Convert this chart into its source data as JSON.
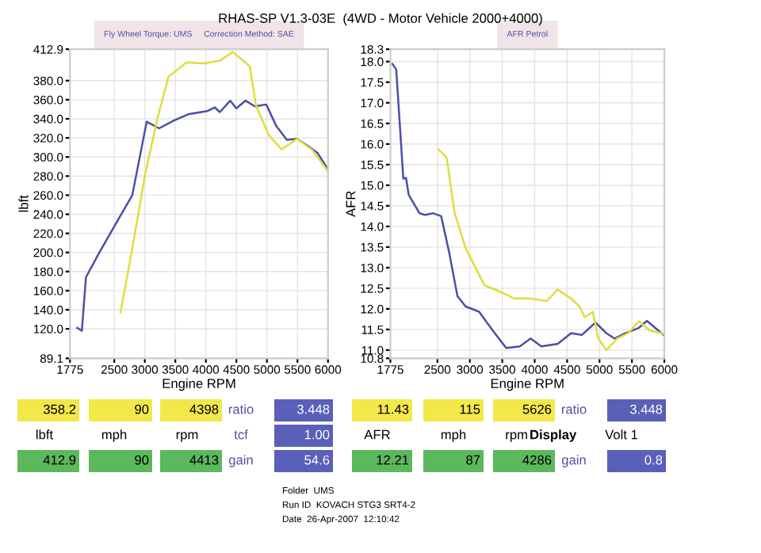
{
  "chart_data": [
    {
      "type": "line",
      "title": "RHAS-SP V1.3-03E  (4WD - Motor Vehicle 2000+4000)",
      "subtitle": "Fly Wheel Torque: UMS     Correction Method: SAE",
      "xlabel": "Engine RPM",
      "ylabel": "lbft",
      "xlim": [
        1775,
        6000
      ],
      "xticks": [
        1775,
        2500,
        3000,
        3500,
        4000,
        4500,
        5000,
        5500,
        6000
      ],
      "ylim": [
        89.1,
        412.9
      ],
      "yticks": [
        89.1,
        {
          "value": 120,
          "label": "120.0"
        },
        {
          "value": 140,
          "label": "140.0"
        },
        {
          "value": 160,
          "label": "160.0"
        },
        {
          "value": 180,
          "label": "180.0"
        },
        {
          "value": 200,
          "label": "200.0"
        },
        {
          "value": 220,
          "label": "220.0"
        },
        {
          "value": 240,
          "label": "240.0"
        },
        {
          "value": 260,
          "label": "260.0"
        },
        {
          "value": 280,
          "label": "280.0"
        },
        {
          "value": 300,
          "label": "300.0"
        },
        {
          "value": 320,
          "label": "320.0"
        },
        {
          "value": 340,
          "label": "340.0"
        },
        {
          "value": 360,
          "label": "360.0"
        },
        {
          "value": 380,
          "label": "380.0"
        },
        412.9
      ],
      "grid": true,
      "series": [
        {
          "color": "#4b4fa8",
          "x": [
            1893,
            1969,
            2036,
            2247,
            2542,
            2795,
            3031,
            3234,
            3470,
            3723,
            4018,
            4145,
            4229,
            4398,
            4499,
            4651,
            4803,
            4988,
            5157,
            5326,
            5495,
            5663,
            5832,
            6000
          ],
          "values": [
            121,
            118,
            174,
            199,
            232,
            260,
            337,
            330,
            338,
            345,
            348,
            352,
            347,
            359,
            351,
            359,
            353,
            355,
            332,
            318,
            319,
            312,
            304,
            287
          ]
        },
        {
          "color": "#dede3c",
          "x": [
            2601,
            2795,
            3006,
            3217,
            3386,
            3681,
            3976,
            4229,
            4440,
            4719,
            4820,
            5030,
            5241,
            5495,
            5748,
            6000
          ],
          "values": [
            137,
            204,
            282,
            343,
            384,
            399,
            398,
            401,
            410,
            395,
            354,
            323,
            308,
            319,
            307,
            285
          ]
        }
      ],
      "annotations": [
        "358.2",
        "90",
        "4398",
        "ratio",
        "3.448",
        "11.43",
        "115",
        "5626",
        "ratio",
        "3.448",
        "lbft",
        "mph",
        "rpm",
        "tcf",
        "1.00",
        "AFR",
        "mph",
        "rpm",
        "Display",
        "Volt 1",
        "412.9",
        "90",
        "4413",
        "gain",
        "54.6",
        "12.21",
        "87",
        "4286",
        "gain",
        "0.8",
        "Folder  UMS",
        "Run ID  KOVACH STG3 SRT4-2",
        "Date  26-Apr-2007  12:10:42"
      ]
    },
    {
      "type": "line",
      "subtitle": "AFR Petrol",
      "xlabel": "Engine RPM",
      "ylabel": "AFR",
      "xlim": [
        1775,
        6000
      ],
      "xticks": [
        1775,
        2500,
        3000,
        3500,
        4000,
        4500,
        5000,
        5500,
        6000
      ],
      "ylim": [
        10.8,
        18.3
      ],
      "yticks": [
        10.8,
        {
          "value": 11,
          "label": "11.0"
        },
        11.5,
        {
          "value": 12,
          "label": "12.0"
        },
        12.5,
        {
          "value": 13,
          "label": "13.0"
        },
        13.5,
        {
          "value": 14,
          "label": "14.0"
        },
        14.5,
        {
          "value": 15,
          "label": "15.0"
        },
        15.5,
        {
          "value": 16,
          "label": "16.0"
        },
        16.5,
        {
          "value": 17,
          "label": "17.0"
        },
        17.5,
        {
          "value": 18,
          "label": "18.0"
        },
        18.3
      ],
      "grid": true,
      "series": [
        {
          "color": "#4b4fa8",
          "x": [
            1807,
            1865,
            1932,
            1974,
            2016,
            2057,
            2224,
            2308,
            2433,
            2558,
            2684,
            2809,
            2934,
            3143,
            3352,
            3561,
            3770,
            3937,
            4104,
            4355,
            4563,
            4730,
            4939,
            5106,
            5231,
            5398,
            5607,
            5732,
            5858,
            6000
          ],
          "values": [
            17.94,
            17.81,
            16.19,
            15.16,
            15.18,
            14.77,
            14.32,
            14.28,
            14.32,
            14.25,
            13.35,
            12.31,
            12.06,
            11.93,
            11.48,
            11.05,
            11.09,
            11.28,
            11.09,
            11.15,
            11.41,
            11.37,
            11.67,
            11.41,
            11.28,
            11.41,
            11.54,
            11.71,
            11.54,
            11.35
          ]
        },
        {
          "color": "#dede3c",
          "x": [
            2517,
            2642,
            2767,
            2934,
            3101,
            3227,
            3436,
            3686,
            3937,
            4187,
            4355,
            4563,
            4689,
            4772,
            4897,
            4981,
            5106,
            5273,
            5440,
            5607,
            5774,
            6000
          ],
          "values": [
            15.87,
            15.67,
            14.32,
            13.48,
            12.96,
            12.57,
            12.44,
            12.25,
            12.25,
            12.19,
            12.47,
            12.25,
            12.06,
            11.8,
            11.93,
            11.28,
            11.0,
            11.28,
            11.41,
            11.7,
            11.48,
            11.39
          ]
        }
      ]
    }
  ]
}
